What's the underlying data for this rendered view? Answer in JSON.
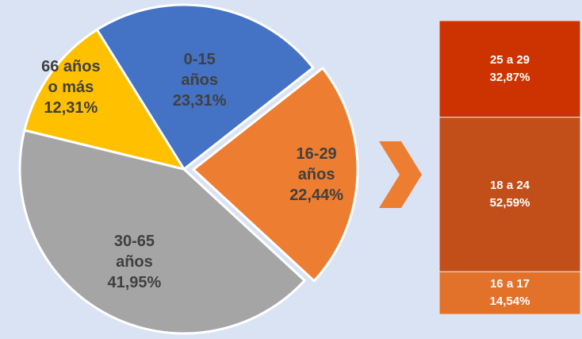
{
  "chart_data": [
    {
      "type": "pie",
      "categories": [
        "0-15 años",
        "16-29 años",
        "30-65 años",
        "66 años o más"
      ],
      "values": [
        23.31,
        22.44,
        41.95,
        12.31
      ],
      "value_labels": [
        "23,31%",
        "22,44%",
        "41,95%",
        "12,31%"
      ],
      "colors": [
        "#4472c4",
        "#ed7d31",
        "#a5a5a5",
        "#ffc000"
      ]
    },
    {
      "type": "stacked_bar",
      "categories": [
        "16 a 17",
        "18 a 24",
        "25 a 29"
      ],
      "values": [
        14.54,
        52.59,
        32.87
      ],
      "value_labels": [
        "14,54%",
        "52,59%",
        "32,87%"
      ],
      "colors": [
        "#e2712a",
        "#c24f1a",
        "#cc3300"
      ]
    }
  ]
}
